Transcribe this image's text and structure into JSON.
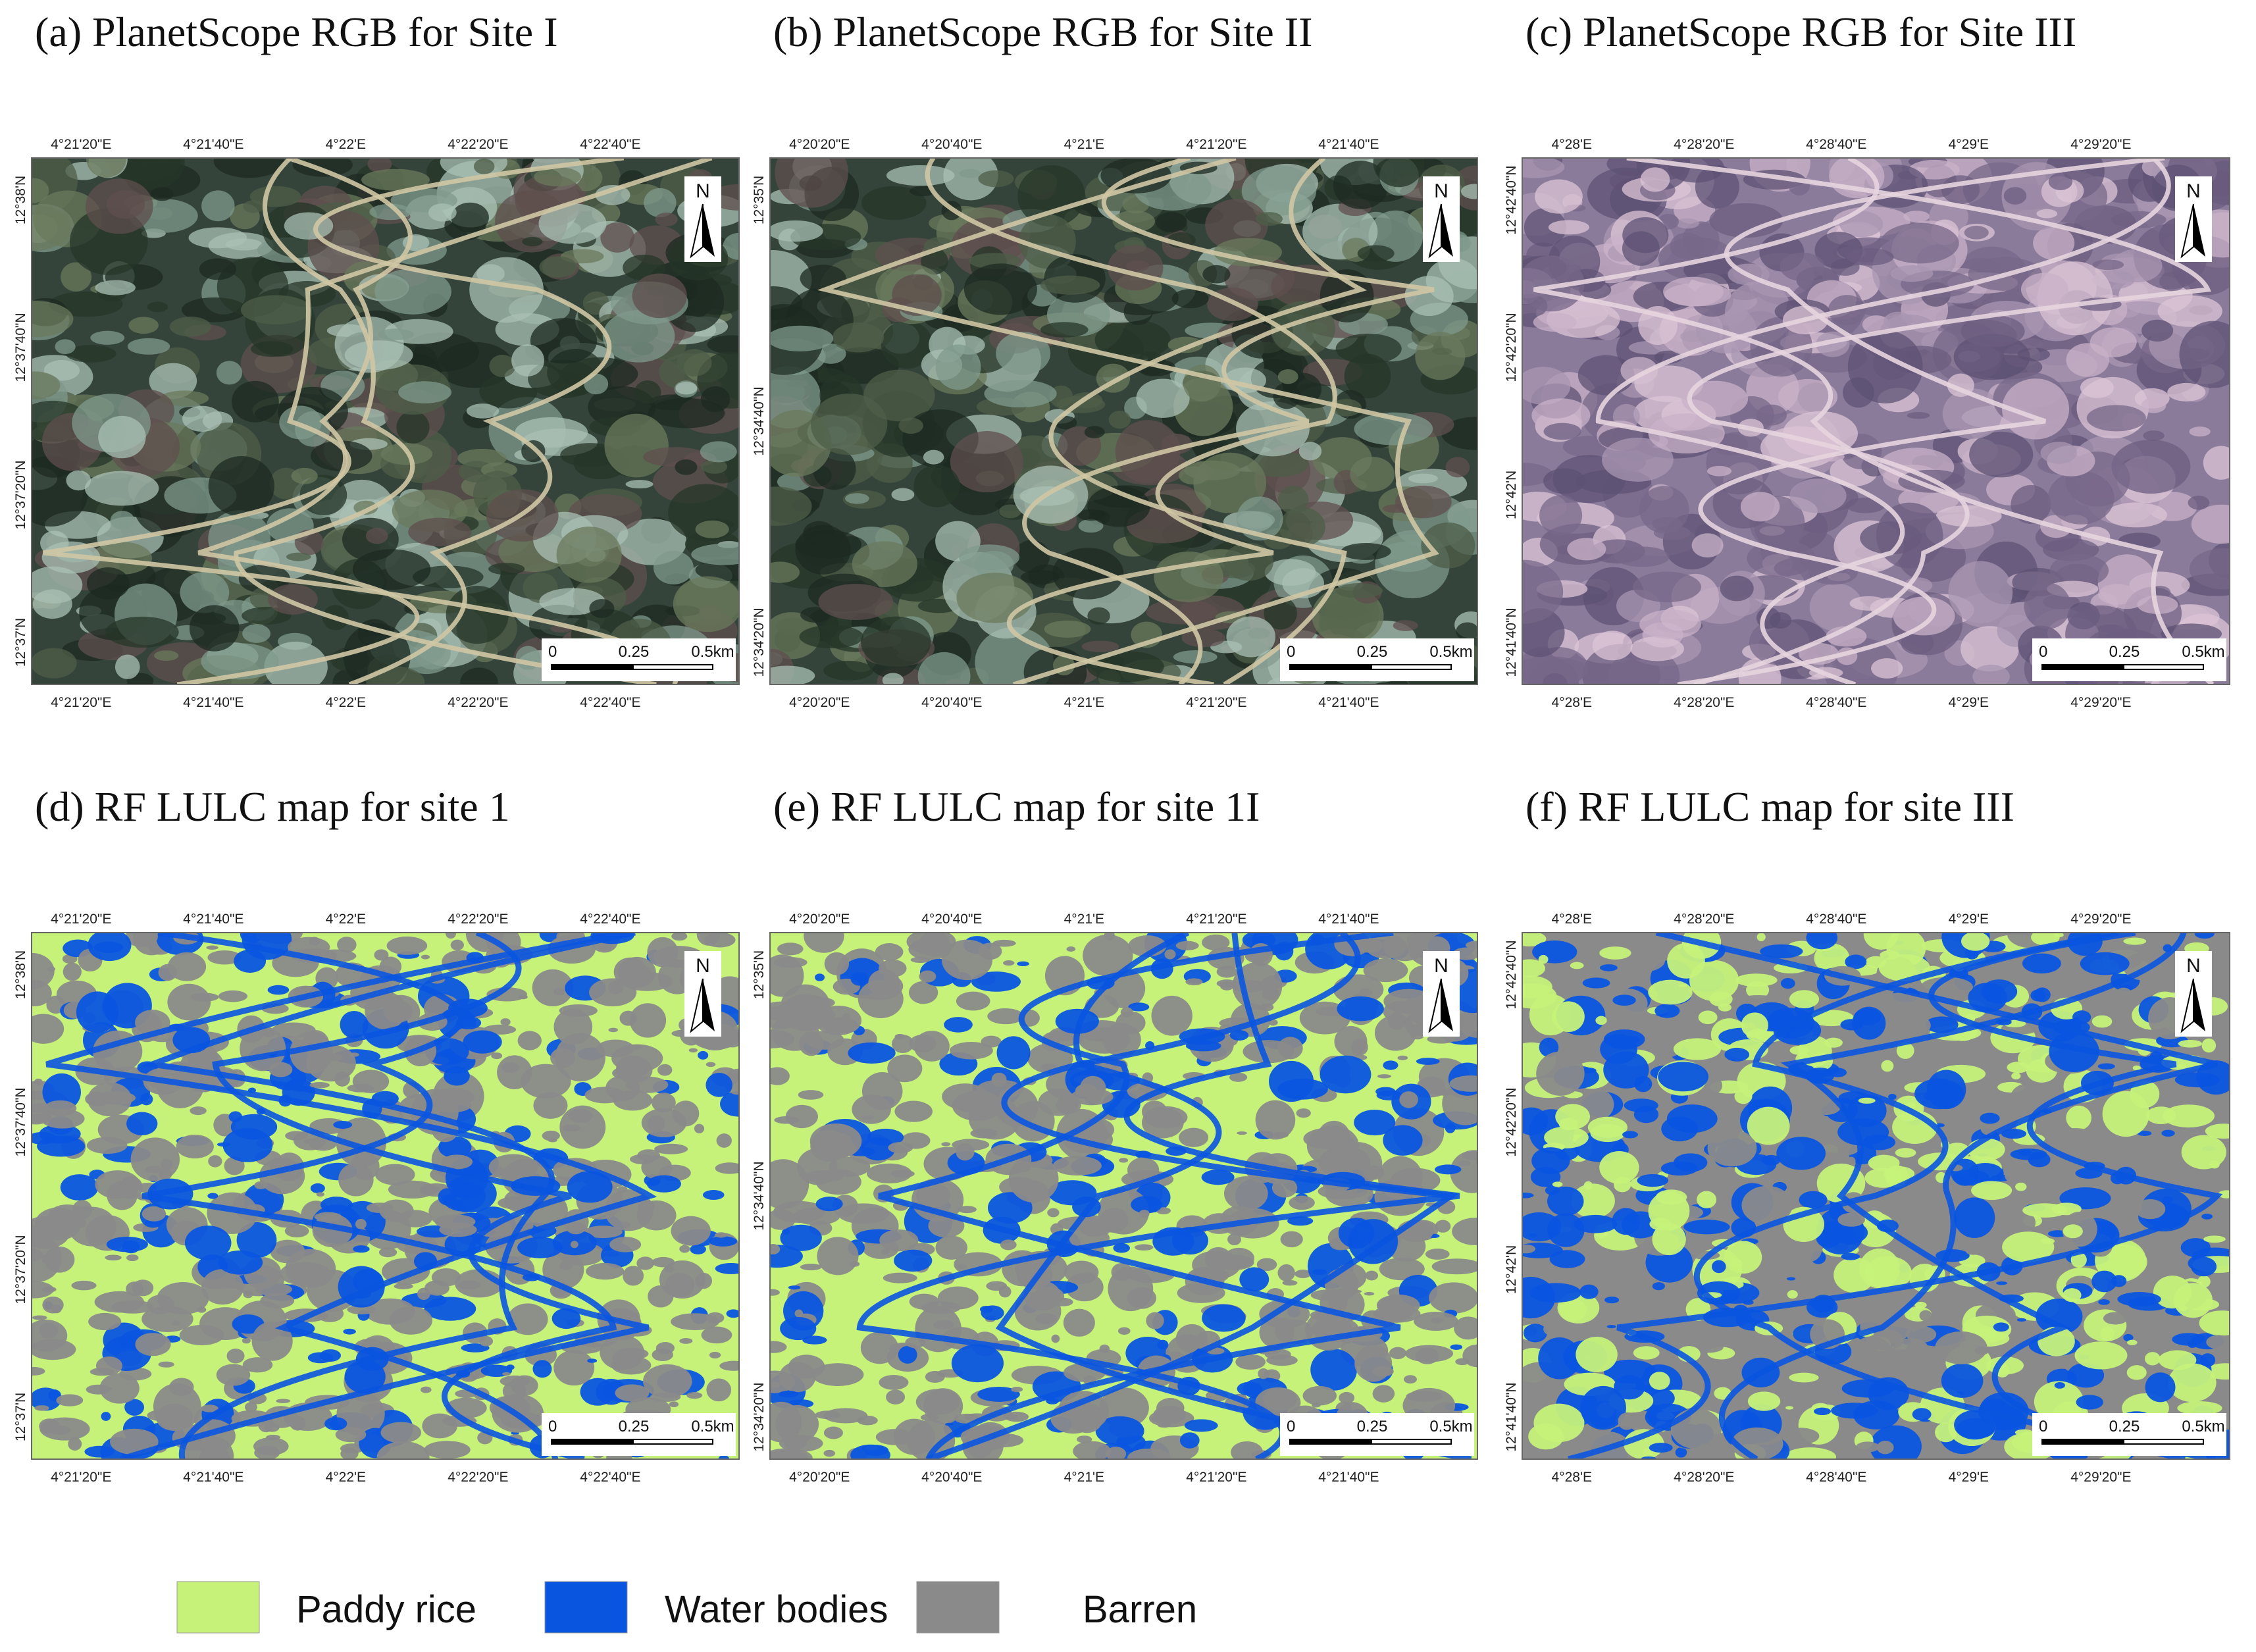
{
  "panels": [
    {
      "title": "(a)  PlanetScope RGB for Site I",
      "kind": "rgb",
      "palette": "green",
      "lon_labels": [
        "4°21'20\"E",
        "4°21'40\"E",
        "4°22'E",
        "4°22'20\"E",
        "4°22'40\"E"
      ],
      "lat_labels": [
        "12°38'N",
        "12°37'40\"N",
        "12°37'20\"N",
        "12°37'N"
      ],
      "north": "N",
      "scale_labels": [
        "0",
        "0.25",
        "0.5km"
      ]
    },
    {
      "title": "(b) PlanetScope RGB for Site II",
      "kind": "rgb",
      "palette": "green",
      "lon_labels": [
        "4°20'20\"E",
        "4°20'40\"E",
        "4°21'E",
        "4°21'20\"E",
        "4°21'40\"E"
      ],
      "lat_labels": [
        "12°35'N",
        "12°34'40\"N",
        "12°34'20\"N"
      ],
      "north": "N",
      "scale_labels": [
        "0",
        "0.25",
        "0.5km"
      ]
    },
    {
      "title": "(c)    PlanetScope RGB for Site III",
      "kind": "rgb",
      "palette": "purple",
      "lon_labels": [
        "4°28'E",
        "4°28'20\"E",
        "4°28'40\"E",
        "4°29'E",
        "4°29'20\"E"
      ],
      "lat_labels": [
        "12°42'40\"N",
        "12°42'20\"N",
        "12°42'N",
        "12°41'40\"N"
      ],
      "north": "N",
      "scale_labels": [
        "0",
        "0.25",
        "0.5km"
      ]
    },
    {
      "title": "(d) RF LULC map for site 1",
      "kind": "lulc",
      "palette": "rice",
      "lon_labels": [
        "4°21'20\"E",
        "4°21'40\"E",
        "4°22'E",
        "4°22'20\"E",
        "4°22'40\"E"
      ],
      "lat_labels": [
        "12°38'N",
        "12°37'40\"N",
        "12°37'20\"N",
        "12°37'N"
      ],
      "north": "N",
      "scale_labels": [
        "0",
        "0.25",
        "0.5km"
      ]
    },
    {
      "title": "(e)    RF LULC map for site 1I",
      "kind": "lulc",
      "palette": "rice",
      "lon_labels": [
        "4°20'20\"E",
        "4°20'40\"E",
        "4°21'E",
        "4°21'20\"E",
        "4°21'40\"E"
      ],
      "lat_labels": [
        "12°35'N",
        "12°34'40\"N",
        "12°34'20\"N"
      ],
      "north": "N",
      "scale_labels": [
        "0",
        "0.25",
        "0.5km"
      ]
    },
    {
      "title": "(f) RF LULC map for site III",
      "kind": "lulc",
      "palette": "barren",
      "lon_labels": [
        "4°28'E",
        "4°28'20\"E",
        "4°28'40\"E",
        "4°29'E",
        "4°29'20\"E"
      ],
      "lat_labels": [
        "12°42'40\"N",
        "12°42'20\"N",
        "12°42'N",
        "12°41'40\"N"
      ],
      "north": "N",
      "scale_labels": [
        "0",
        "0.25",
        "0.5km"
      ]
    }
  ],
  "legend": [
    {
      "name": "Paddy rice",
      "color": "#c6f27a"
    },
    {
      "name": "Water bodies",
      "color": "#0a55e0"
    },
    {
      "name": "Barren",
      "color": "#8a8a8a"
    }
  ]
}
